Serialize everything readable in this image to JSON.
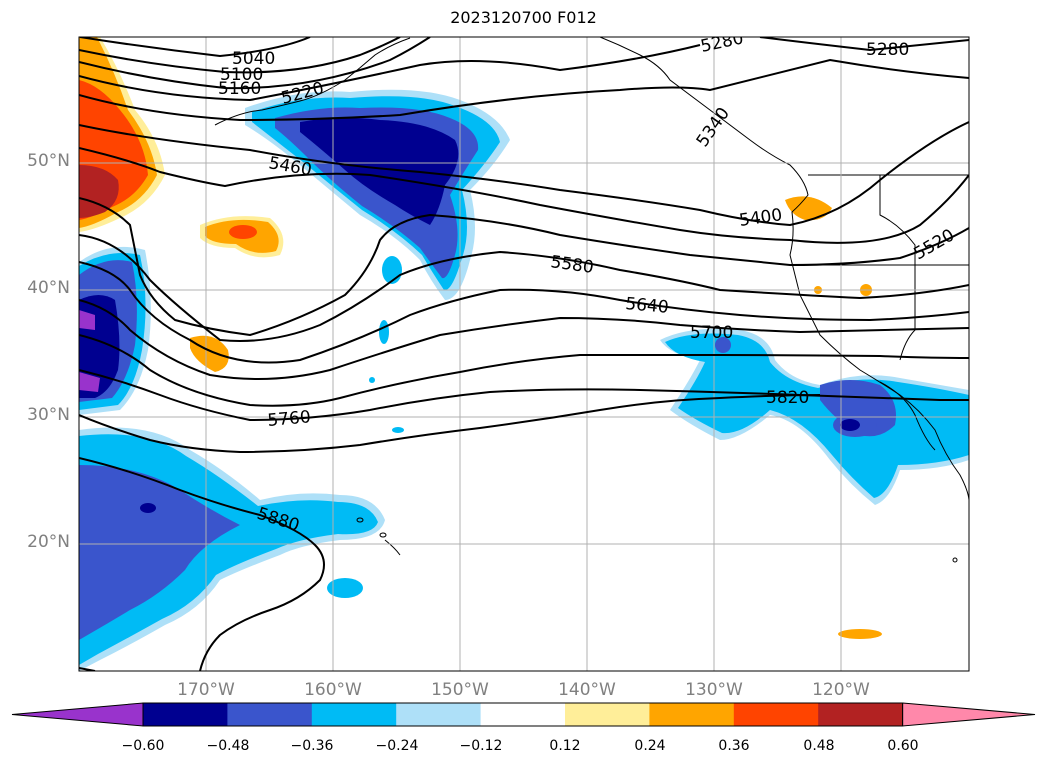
{
  "title": "2023120700 F012",
  "map": {
    "lat_labels": [
      {
        "label": "50°N",
        "lat": 50
      },
      {
        "label": "40°N",
        "lat": 40
      },
      {
        "label": "30°N",
        "lat": 30
      },
      {
        "label": "20°N",
        "lat": 20
      }
    ],
    "lon_labels": [
      {
        "label": "170°W",
        "lon": -170
      },
      {
        "label": "160°W",
        "lon": -160
      },
      {
        "label": "150°W",
        "lon": -150
      },
      {
        "label": "140°W",
        "lon": -140
      },
      {
        "label": "130°W",
        "lon": -130
      },
      {
        "label": "120°W",
        "lon": -120
      }
    ],
    "contour_labels": [
      "5040",
      "5100",
      "5160",
      "5220",
      "5280",
      "5280",
      "5340",
      "5400",
      "5460",
      "5520",
      "5580",
      "5640",
      "5700",
      "5760",
      "5820",
      "5880"
    ]
  },
  "colorbar": {
    "ticks": [
      "−0.60",
      "−0.48",
      "−0.36",
      "−0.24",
      "−0.12",
      "0.12",
      "0.24",
      "0.36",
      "0.48",
      "0.60"
    ],
    "colors": [
      "#9933cc",
      "#000090",
      "#3a55cc",
      "#00bbf5",
      "#aee0f8",
      "#ffffff",
      "#ffee99",
      "#ffa500",
      "#ff4400",
      "#b22222",
      "#ff88aa"
    ]
  }
}
